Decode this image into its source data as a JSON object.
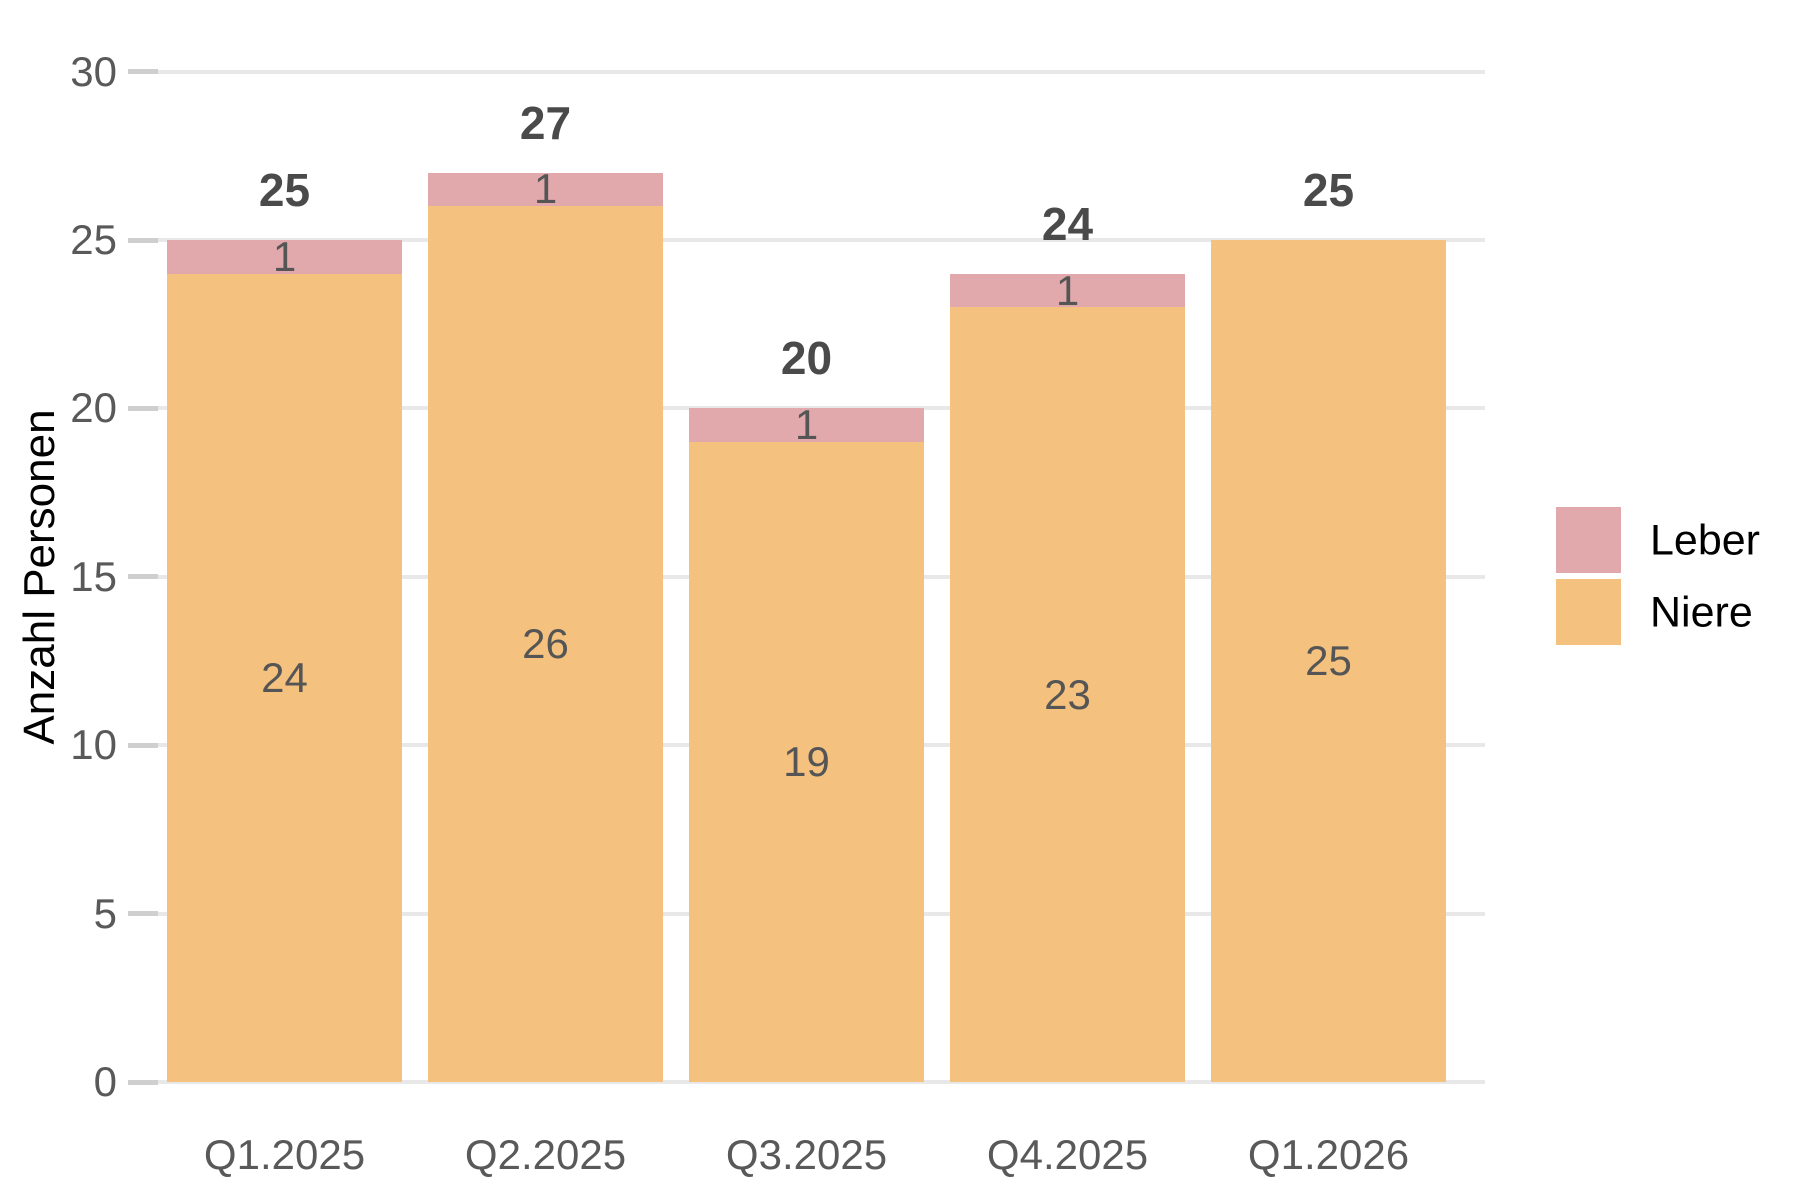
{
  "chart_data": {
    "type": "bar",
    "stacked": true,
    "title": "",
    "xlabel": "",
    "ylabel": "Anzahl Personen",
    "categories": [
      "Q1.2025",
      "Q2.2025",
      "Q3.2025",
      "Q4.2025",
      "Q1.2026"
    ],
    "series": [
      {
        "name": "Leber",
        "color": "#E1A9AC",
        "values": [
          1,
          1,
          1,
          1,
          0
        ]
      },
      {
        "name": "Niere",
        "color": "#F4C17E",
        "values": [
          24,
          26,
          19,
          23,
          25
        ]
      }
    ],
    "totals": [
      25,
      27,
      20,
      24,
      25
    ],
    "segment_labels": {
      "Leber": [
        "1",
        "1",
        "1",
        "1",
        ""
      ],
      "Niere": [
        "24",
        "26",
        "19",
        "23",
        "25"
      ]
    },
    "ylim": [
      0,
      30
    ],
    "yticks": [
      0,
      5,
      10,
      15,
      20,
      25,
      30
    ],
    "grid": "horizontal",
    "legend_position": "right"
  },
  "legend": {
    "items": [
      {
        "label": "Leber",
        "color": "#E1A9AC"
      },
      {
        "label": "Niere",
        "color": "#F4C17E"
      }
    ]
  },
  "colors": {
    "background": "#FFFFFF",
    "gridline": "#E8E8E8",
    "tick_mark": "#CFCFCF",
    "axis_text": "#595959",
    "segment_label_text": "#555555",
    "total_label_text": "#4A4A4A",
    "axis_title_text": "#000000",
    "legend_text": "#000000"
  }
}
